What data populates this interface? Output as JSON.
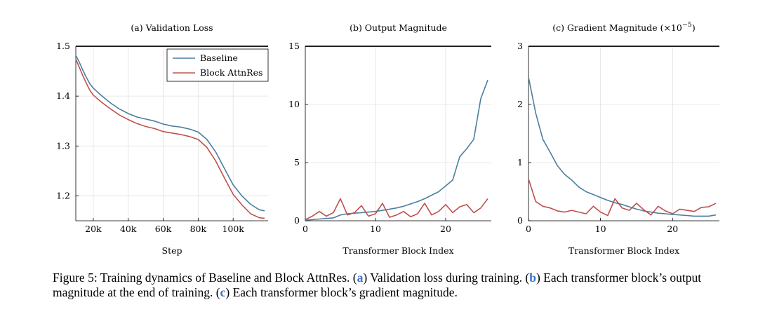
{
  "figure": {
    "caption": {
      "prefix": "Figure 5: Training dynamics of Baseline and Block AttnRes. (",
      "ref_a": "a",
      "text_a": ") Validation loss during training. (",
      "ref_b": "b",
      "text_b": ") Each transformer block’s output magnitude at the end of training. (",
      "ref_c": "c",
      "text_c": ") Each transformer block’s gradient magnitude."
    }
  },
  "colors": {
    "baseline": "#4a7fa0",
    "attnres": "#c0504d",
    "grid": "#e0e0e0"
  },
  "chart_data": [
    {
      "type": "line",
      "title": "(a) Validation Loss",
      "xlabel": "Step",
      "ylabel": "",
      "xlim": [
        10000,
        120000
      ],
      "ylim": [
        1.15,
        1.5
      ],
      "xticks": [
        20000,
        40000,
        60000,
        80000,
        100000
      ],
      "xticklabels": [
        "20k",
        "40k",
        "60k",
        "80k",
        "100k"
      ],
      "yticks": [
        1.2,
        1.3,
        1.4,
        1.5
      ],
      "yticklabels": [
        "1.2",
        "1.3",
        "1.4",
        "1.5"
      ],
      "legend": "top-right",
      "grid": true,
      "x": [
        10000,
        12000,
        14000,
        16000,
        18000,
        20000,
        25000,
        30000,
        35000,
        40000,
        45000,
        50000,
        55000,
        60000,
        65000,
        70000,
        75000,
        80000,
        85000,
        90000,
        95000,
        100000,
        105000,
        110000,
        115000,
        118000
      ],
      "series": [
        {
          "name": "Baseline",
          "color": "baseline",
          "values": [
            1.482,
            1.468,
            1.452,
            1.438,
            1.425,
            1.416,
            1.4,
            1.386,
            1.374,
            1.365,
            1.358,
            1.354,
            1.35,
            1.344,
            1.34,
            1.338,
            1.334,
            1.328,
            1.313,
            1.288,
            1.255,
            1.222,
            1.2,
            1.183,
            1.172,
            1.17
          ]
        },
        {
          "name": "Block AttnRes",
          "color": "attnres",
          "values": [
            1.474,
            1.458,
            1.441,
            1.426,
            1.412,
            1.402,
            1.387,
            1.374,
            1.362,
            1.353,
            1.345,
            1.339,
            1.335,
            1.329,
            1.326,
            1.323,
            1.319,
            1.313,
            1.297,
            1.27,
            1.236,
            1.203,
            1.182,
            1.164,
            1.156,
            1.155
          ]
        }
      ]
    },
    {
      "type": "line",
      "title": "(b) Output Magnitude",
      "xlabel": "Transformer Block Index",
      "ylabel": "",
      "xlim": [
        0,
        26.5
      ],
      "ylim": [
        0,
        15
      ],
      "xticks": [
        0,
        10,
        20
      ],
      "xticklabels": [
        "0",
        "10",
        "20"
      ],
      "yticks": [
        0,
        5,
        10,
        15
      ],
      "yticklabels": [
        "0",
        "5",
        "10",
        "15"
      ],
      "grid": true,
      "x": [
        0,
        1,
        2,
        3,
        4,
        5,
        6,
        7,
        8,
        9,
        10,
        11,
        12,
        13,
        14,
        15,
        16,
        17,
        18,
        19,
        20,
        21,
        22,
        23,
        24,
        25,
        26
      ],
      "series": [
        {
          "name": "Baseline",
          "color": "baseline",
          "values": [
            0.05,
            0.1,
            0.15,
            0.2,
            0.25,
            0.5,
            0.6,
            0.65,
            0.7,
            0.75,
            0.8,
            0.9,
            1.0,
            1.1,
            1.25,
            1.45,
            1.65,
            1.9,
            2.2,
            2.5,
            3.0,
            3.5,
            5.5,
            6.2,
            7.0,
            10.5,
            12.1
          ]
        },
        {
          "name": "Block AttnRes",
          "color": "attnres",
          "values": [
            0.1,
            0.4,
            0.8,
            0.4,
            0.7,
            1.9,
            0.5,
            0.7,
            1.3,
            0.4,
            0.6,
            1.5,
            0.3,
            0.5,
            0.8,
            0.35,
            0.6,
            1.5,
            0.5,
            0.8,
            1.4,
            0.7,
            1.2,
            1.4,
            0.7,
            1.1,
            1.9
          ]
        }
      ]
    },
    {
      "type": "line",
      "title": "(c) Gradient Magnitude (×10",
      "title_sup": "−5",
      "title_end": ")",
      "xlabel": "Transformer Block Index",
      "ylabel": "",
      "xlim": [
        0,
        26.5
      ],
      "ylim": [
        0,
        3
      ],
      "xticks": [
        0,
        10,
        20
      ],
      "xticklabels": [
        "0",
        "10",
        "20"
      ],
      "yticks": [
        0,
        1,
        2,
        3
      ],
      "yticklabels": [
        "0",
        "1",
        "2",
        "3"
      ],
      "grid": true,
      "x": [
        0,
        1,
        2,
        3,
        4,
        5,
        6,
        7,
        8,
        9,
        10,
        11,
        12,
        13,
        14,
        15,
        16,
        17,
        18,
        19,
        20,
        21,
        22,
        23,
        24,
        25,
        26
      ],
      "series": [
        {
          "name": "Baseline",
          "color": "baseline",
          "values": [
            2.47,
            1.85,
            1.4,
            1.18,
            0.95,
            0.8,
            0.7,
            0.58,
            0.5,
            0.45,
            0.4,
            0.35,
            0.31,
            0.28,
            0.24,
            0.2,
            0.17,
            0.15,
            0.13,
            0.12,
            0.11,
            0.1,
            0.09,
            0.08,
            0.08,
            0.08,
            0.1
          ]
        },
        {
          "name": "Block AttnRes",
          "color": "attnres",
          "values": [
            0.72,
            0.33,
            0.25,
            0.22,
            0.17,
            0.15,
            0.18,
            0.15,
            0.12,
            0.25,
            0.15,
            0.09,
            0.38,
            0.22,
            0.18,
            0.3,
            0.19,
            0.1,
            0.25,
            0.17,
            0.12,
            0.2,
            0.18,
            0.16,
            0.23,
            0.24,
            0.3
          ]
        }
      ]
    }
  ]
}
